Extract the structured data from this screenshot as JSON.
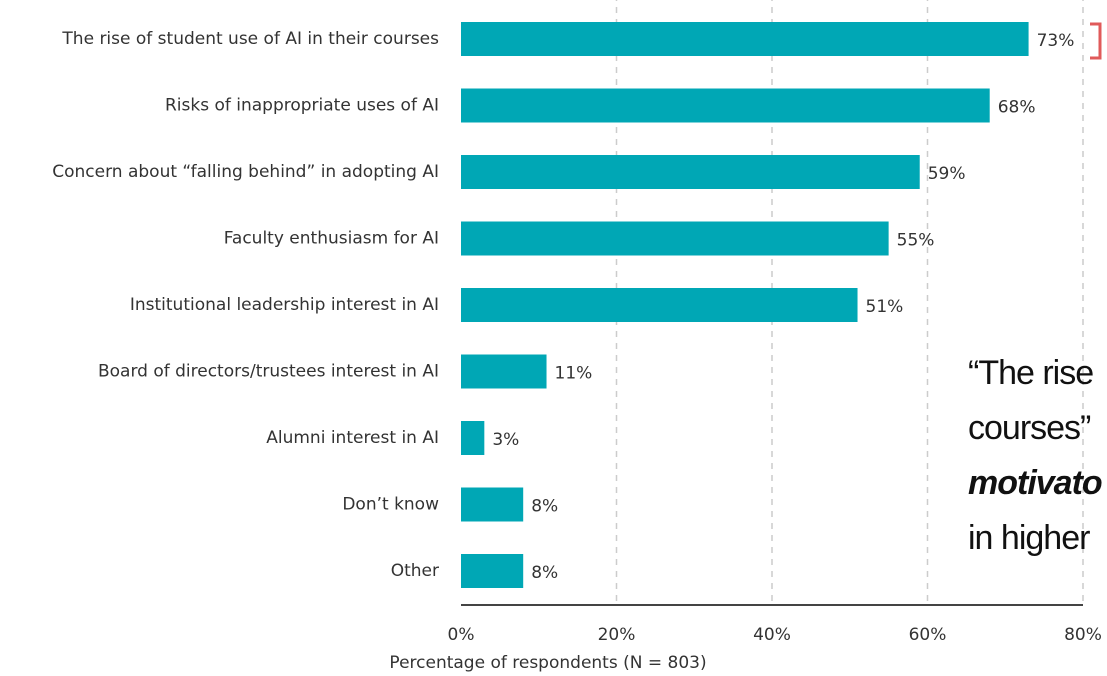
{
  "chart_data": {
    "type": "bar",
    "orientation": "horizontal",
    "categories": [
      "The rise of student use of AI in their courses",
      "Risks of inappropriate uses of AI",
      "Concern about “falling behind” in adopting AI",
      "Faculty enthusiasm for AI",
      "Institutional leadership interest in AI",
      "Board of directors/trustees interest in AI",
      "Alumni interest in AI",
      "Don’t know",
      "Other"
    ],
    "values": [
      73,
      68,
      59,
      55,
      51,
      11,
      3,
      8,
      8
    ],
    "value_labels": [
      "73%",
      "68%",
      "59%",
      "55%",
      "51%",
      "11%",
      "3%",
      "8%",
      "8%"
    ],
    "color": "#00a7b5",
    "xlim": [
      0,
      80
    ],
    "xticks": [
      {
        "value": 0,
        "label": "0%"
      },
      {
        "value": 20,
        "label": "20%"
      },
      {
        "value": 40,
        "label": "40%"
      },
      {
        "value": 60,
        "label": "60%"
      },
      {
        "value": 80,
        "label": "80%"
      }
    ],
    "xlabel": "Percentage of respondents (N = 803)",
    "grid": true,
    "annotation": [
      "“The rise",
      "courses”",
      "motivato",
      "in higher"
    ]
  }
}
